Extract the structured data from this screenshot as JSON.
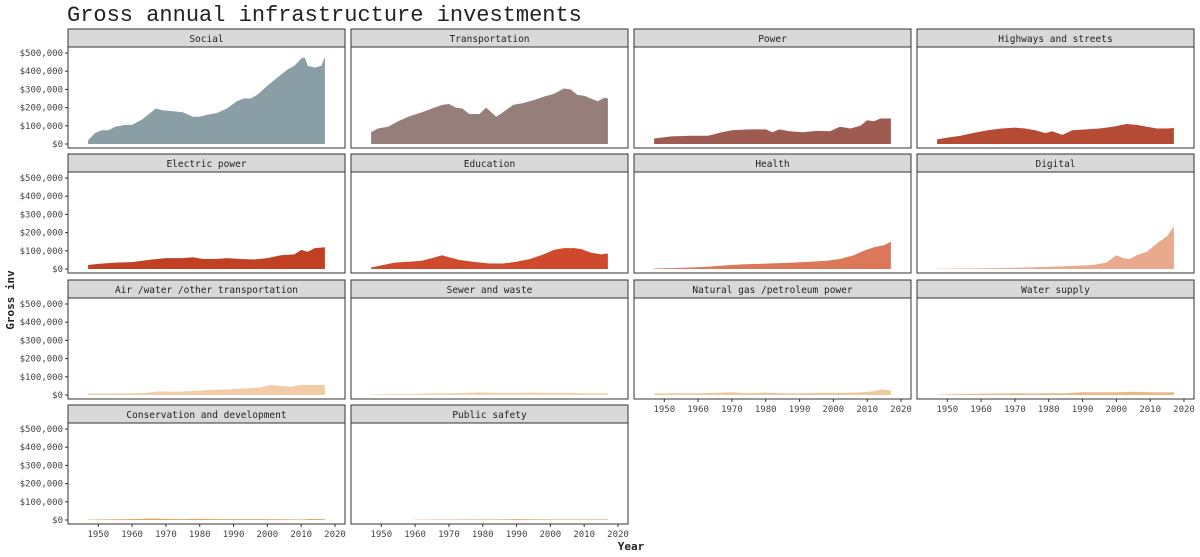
{
  "chart_data": {
    "type": "area",
    "title": "Gross annual infrastructure investments",
    "xlabel": "Year",
    "ylabel": "Gross inv",
    "xlim": [
      1944,
      2020
    ],
    "ylim": [
      0,
      500000
    ],
    "x_ticks": [
      1950,
      1960,
      1970,
      1980,
      1990,
      2000,
      2010,
      2020
    ],
    "y_ticks": [
      0,
      100000,
      200000,
      300000,
      400000,
      500000
    ],
    "y_tick_labels": [
      "$0",
      "$100,000",
      "$200,000",
      "$300,000",
      "$400,000",
      "$500,000"
    ],
    "x_tick_labels": [
      "1950",
      "1960",
      "1970",
      "1980",
      "1990",
      "2000",
      "2010",
      "2020"
    ],
    "layout": "facet-wrap 4 columns",
    "facets": [
      {
        "name": "Social",
        "color": "#8a9ea6",
        "points": [
          [
            1947,
            20000
          ],
          [
            1949,
            60000
          ],
          [
            1951,
            75000
          ],
          [
            1953,
            75000
          ],
          [
            1955,
            95000
          ],
          [
            1958,
            105000
          ],
          [
            1960,
            105000
          ],
          [
            1963,
            135000
          ],
          [
            1966,
            180000
          ],
          [
            1967,
            195000
          ],
          [
            1969,
            185000
          ],
          [
            1972,
            180000
          ],
          [
            1975,
            175000
          ],
          [
            1978,
            150000
          ],
          [
            1980,
            150000
          ],
          [
            1982,
            160000
          ],
          [
            1985,
            170000
          ],
          [
            1988,
            195000
          ],
          [
            1991,
            235000
          ],
          [
            1993,
            250000
          ],
          [
            1995,
            250000
          ],
          [
            1997,
            270000
          ],
          [
            2000,
            320000
          ],
          [
            2002,
            350000
          ],
          [
            2004,
            380000
          ],
          [
            2006,
            410000
          ],
          [
            2008,
            430000
          ],
          [
            2010,
            470000
          ],
          [
            2011,
            475000
          ],
          [
            2012,
            430000
          ],
          [
            2014,
            420000
          ],
          [
            2016,
            430000
          ],
          [
            2017,
            480000
          ]
        ]
      },
      {
        "name": "Transportation",
        "color": "#967f7a",
        "points": [
          [
            1947,
            65000
          ],
          [
            1949,
            85000
          ],
          [
            1952,
            95000
          ],
          [
            1955,
            125000
          ],
          [
            1958,
            150000
          ],
          [
            1962,
            175000
          ],
          [
            1965,
            195000
          ],
          [
            1968,
            215000
          ],
          [
            1970,
            220000
          ],
          [
            1972,
            200000
          ],
          [
            1974,
            195000
          ],
          [
            1976,
            165000
          ],
          [
            1979,
            165000
          ],
          [
            1981,
            200000
          ],
          [
            1984,
            150000
          ],
          [
            1986,
            175000
          ],
          [
            1989,
            215000
          ],
          [
            1992,
            225000
          ],
          [
            1995,
            240000
          ],
          [
            1998,
            260000
          ],
          [
            2001,
            275000
          ],
          [
            2004,
            305000
          ],
          [
            2006,
            300000
          ],
          [
            2008,
            270000
          ],
          [
            2010,
            265000
          ],
          [
            2012,
            250000
          ],
          [
            2014,
            235000
          ],
          [
            2016,
            255000
          ],
          [
            2017,
            250000
          ]
        ]
      },
      {
        "name": "Power",
        "color": "#9d5b51",
        "points": [
          [
            1947,
            30000
          ],
          [
            1952,
            42000
          ],
          [
            1958,
            45000
          ],
          [
            1963,
            45000
          ],
          [
            1967,
            65000
          ],
          [
            1970,
            75000
          ],
          [
            1975,
            80000
          ],
          [
            1980,
            80000
          ],
          [
            1982,
            65000
          ],
          [
            1984,
            80000
          ],
          [
            1987,
            70000
          ],
          [
            1991,
            65000
          ],
          [
            1995,
            72000
          ],
          [
            1999,
            70000
          ],
          [
            2002,
            95000
          ],
          [
            2005,
            85000
          ],
          [
            2008,
            100000
          ],
          [
            2010,
            130000
          ],
          [
            2012,
            125000
          ],
          [
            2014,
            140000
          ],
          [
            2017,
            140000
          ]
        ]
      },
      {
        "name": "Highways and streets",
        "color": "#b54a35",
        "points": [
          [
            1947,
            25000
          ],
          [
            1950,
            35000
          ],
          [
            1954,
            45000
          ],
          [
            1958,
            62000
          ],
          [
            1962,
            75000
          ],
          [
            1966,
            85000
          ],
          [
            1970,
            90000
          ],
          [
            1973,
            85000
          ],
          [
            1976,
            75000
          ],
          [
            1979,
            60000
          ],
          [
            1981,
            70000
          ],
          [
            1984,
            50000
          ],
          [
            1987,
            75000
          ],
          [
            1991,
            80000
          ],
          [
            1995,
            85000
          ],
          [
            1999,
            95000
          ],
          [
            2003,
            110000
          ],
          [
            2006,
            105000
          ],
          [
            2009,
            95000
          ],
          [
            2012,
            85000
          ],
          [
            2015,
            85000
          ],
          [
            2017,
            88000
          ]
        ]
      },
      {
        "name": "Electric power",
        "color": "#c13f22",
        "points": [
          [
            1947,
            22000
          ],
          [
            1950,
            28000
          ],
          [
            1955,
            35000
          ],
          [
            1960,
            38000
          ],
          [
            1965,
            50000
          ],
          [
            1970,
            60000
          ],
          [
            1975,
            60000
          ],
          [
            1978,
            65000
          ],
          [
            1981,
            55000
          ],
          [
            1985,
            55000
          ],
          [
            1988,
            60000
          ],
          [
            1992,
            55000
          ],
          [
            1996,
            52000
          ],
          [
            2000,
            60000
          ],
          [
            2004,
            75000
          ],
          [
            2008,
            80000
          ],
          [
            2010,
            105000
          ],
          [
            2012,
            95000
          ],
          [
            2014,
            115000
          ],
          [
            2017,
            120000
          ]
        ]
      },
      {
        "name": "Education",
        "color": "#cf4a2d",
        "points": [
          [
            1947,
            8000
          ],
          [
            1950,
            20000
          ],
          [
            1954,
            35000
          ],
          [
            1958,
            40000
          ],
          [
            1962,
            45000
          ],
          [
            1965,
            60000
          ],
          [
            1968,
            75000
          ],
          [
            1970,
            65000
          ],
          [
            1973,
            50000
          ],
          [
            1977,
            40000
          ],
          [
            1982,
            30000
          ],
          [
            1986,
            30000
          ],
          [
            1990,
            40000
          ],
          [
            1994,
            55000
          ],
          [
            1998,
            80000
          ],
          [
            2001,
            105000
          ],
          [
            2004,
            115000
          ],
          [
            2007,
            115000
          ],
          [
            2009,
            110000
          ],
          [
            2012,
            90000
          ],
          [
            2015,
            80000
          ],
          [
            2017,
            85000
          ]
        ]
      },
      {
        "name": "Health",
        "color": "#dc775a",
        "points": [
          [
            1947,
            3000
          ],
          [
            1952,
            5000
          ],
          [
            1958,
            8000
          ],
          [
            1963,
            12000
          ],
          [
            1968,
            20000
          ],
          [
            1973,
            25000
          ],
          [
            1978,
            28000
          ],
          [
            1983,
            32000
          ],
          [
            1988,
            35000
          ],
          [
            1993,
            40000
          ],
          [
            1998,
            45000
          ],
          [
            2002,
            55000
          ],
          [
            2006,
            75000
          ],
          [
            2009,
            100000
          ],
          [
            2012,
            120000
          ],
          [
            2015,
            130000
          ],
          [
            2017,
            150000
          ]
        ]
      },
      {
        "name": "Digital",
        "color": "#e8a98d",
        "points": [
          [
            1947,
            1000
          ],
          [
            1955,
            3000
          ],
          [
            1965,
            5000
          ],
          [
            1975,
            9000
          ],
          [
            1985,
            15000
          ],
          [
            1993,
            22000
          ],
          [
            1997,
            35000
          ],
          [
            2000,
            75000
          ],
          [
            2002,
            60000
          ],
          [
            2004,
            55000
          ],
          [
            2006,
            75000
          ],
          [
            2009,
            95000
          ],
          [
            2012,
            140000
          ],
          [
            2015,
            180000
          ],
          [
            2017,
            235000
          ]
        ]
      },
      {
        "name": "Air /water /other transportation",
        "color": "#f2cba7",
        "points": [
          [
            1947,
            8000
          ],
          [
            1955,
            8000
          ],
          [
            1963,
            10000
          ],
          [
            1968,
            20000
          ],
          [
            1973,
            18000
          ],
          [
            1978,
            22000
          ],
          [
            1983,
            28000
          ],
          [
            1988,
            30000
          ],
          [
            1993,
            35000
          ],
          [
            1998,
            42000
          ],
          [
            2001,
            55000
          ],
          [
            2004,
            50000
          ],
          [
            2007,
            45000
          ],
          [
            2010,
            55000
          ],
          [
            2014,
            55000
          ],
          [
            2017,
            55000
          ]
        ]
      },
      {
        "name": "Sewer and waste",
        "color": "#f4d3b1",
        "points": [
          [
            1947,
            2000
          ],
          [
            1952,
            5000
          ],
          [
            1958,
            5000
          ],
          [
            1965,
            10000
          ],
          [
            1970,
            10000
          ],
          [
            1975,
            12000
          ],
          [
            1980,
            15000
          ],
          [
            1985,
            12000
          ],
          [
            1990,
            12000
          ],
          [
            1995,
            14000
          ],
          [
            2000,
            12000
          ],
          [
            2005,
            12000
          ],
          [
            2010,
            10000
          ],
          [
            2017,
            10000
          ]
        ]
      },
      {
        "name": "Natural gas /petroleum power",
        "color": "#f0c89f",
        "points": [
          [
            1947,
            8000
          ],
          [
            1955,
            10000
          ],
          [
            1960,
            10000
          ],
          [
            1965,
            12000
          ],
          [
            1970,
            15000
          ],
          [
            1975,
            10000
          ],
          [
            1980,
            14000
          ],
          [
            1985,
            10000
          ],
          [
            1990,
            10000
          ],
          [
            1995,
            12000
          ],
          [
            2000,
            12000
          ],
          [
            2005,
            12000
          ],
          [
            2008,
            15000
          ],
          [
            2012,
            20000
          ],
          [
            2014,
            30000
          ],
          [
            2017,
            25000
          ]
        ]
      },
      {
        "name": "Water supply",
        "color": "#ebb883",
        "points": [
          [
            1947,
            2000
          ],
          [
            1952,
            4000
          ],
          [
            1958,
            6000
          ],
          [
            1965,
            8000
          ],
          [
            1970,
            10000
          ],
          [
            1975,
            8000
          ],
          [
            1980,
            10000
          ],
          [
            1985,
            10000
          ],
          [
            1990,
            15000
          ],
          [
            1995,
            15000
          ],
          [
            2000,
            15000
          ],
          [
            2005,
            18000
          ],
          [
            2010,
            15000
          ],
          [
            2017,
            15000
          ]
        ]
      },
      {
        "name": "Conservation and development",
        "color": "#e3a866",
        "points": [
          [
            1947,
            2000
          ],
          [
            1955,
            4000
          ],
          [
            1962,
            6000
          ],
          [
            1966,
            8000
          ],
          [
            1970,
            6000
          ],
          [
            1975,
            5000
          ],
          [
            1980,
            7000
          ],
          [
            1985,
            5000
          ],
          [
            1990,
            5000
          ],
          [
            1995,
            5000
          ],
          [
            2000,
            5000
          ],
          [
            2005,
            4000
          ],
          [
            2010,
            3000
          ],
          [
            2013,
            6000
          ],
          [
            2017,
            5000
          ]
        ]
      },
      {
        "name": "Public safety",
        "color": "#d69a4e",
        "points": [
          [
            1960,
            1500
          ],
          [
            1970,
            2000
          ],
          [
            1980,
            2500
          ],
          [
            1985,
            3000
          ],
          [
            1990,
            4000
          ],
          [
            1995,
            3500
          ],
          [
            2000,
            3000
          ],
          [
            2005,
            3000
          ],
          [
            2010,
            2500
          ],
          [
            2017,
            2500
          ]
        ]
      }
    ]
  }
}
